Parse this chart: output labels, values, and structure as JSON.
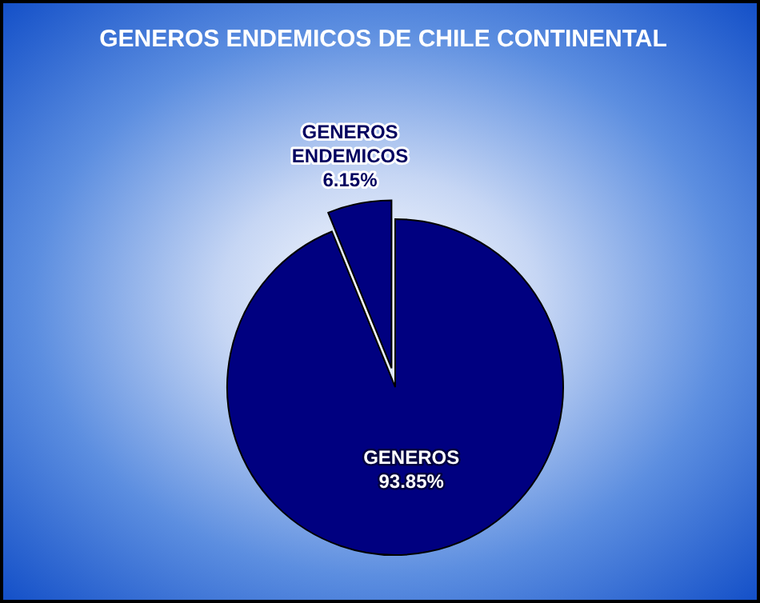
{
  "chart_data": {
    "type": "pie",
    "title": "GENEROS ENDEMICOS DE CHILE CONTINENTAL",
    "categories": [
      "GENEROS ENDEMICOS",
      "GENEROS"
    ],
    "values": [
      6.15,
      93.85
    ],
    "colors": [
      "#000080",
      "#000080"
    ],
    "value_labels": [
      "6.15%",
      "93.85%"
    ]
  }
}
